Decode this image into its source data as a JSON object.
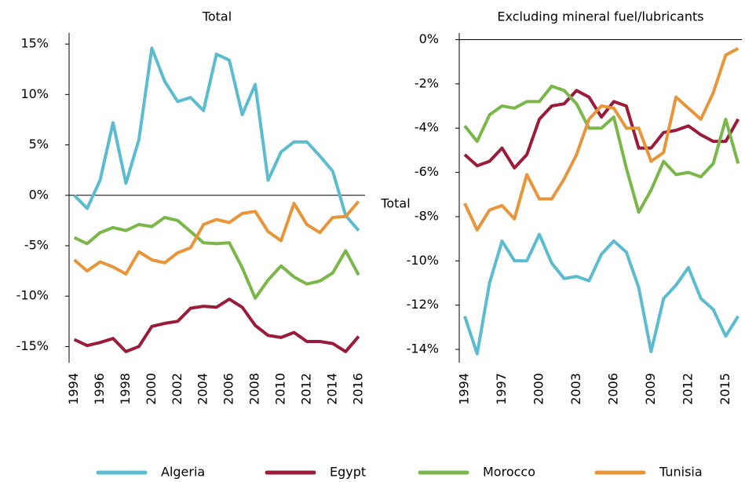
{
  "chart_data": [
    {
      "type": "line",
      "title": "Total",
      "x": [
        1994,
        1995,
        1996,
        1997,
        1998,
        1999,
        2000,
        2001,
        2002,
        2003,
        2004,
        2005,
        2006,
        2007,
        2008,
        2009,
        2010,
        2011,
        2012,
        2013,
        2014,
        2015,
        2016
      ],
      "xlim": [
        1993.6,
        2016.5
      ],
      "xticks": [
        1994,
        1996,
        1998,
        2000,
        2002,
        2004,
        2006,
        2008,
        2010,
        2012,
        2014,
        2016
      ],
      "ylim": [
        -16.6,
        16.1
      ],
      "yticks": [
        {
          "value": -15,
          "label": "-15%"
        },
        {
          "value": -10,
          "label": "-10%"
        },
        {
          "value": -5,
          "label": "-5%"
        },
        {
          "value": 0,
          "label": "0%"
        },
        {
          "value": 5,
          "label": "5%"
        },
        {
          "value": 10,
          "label": "10%"
        },
        {
          "value": 15,
          "label": "15%"
        }
      ],
      "series": [
        {
          "name": "Algeria",
          "color": "#5bbccf",
          "values": [
            0,
            -1.3,
            1.5,
            7.2,
            1.2,
            5.5,
            14.6,
            11.3,
            9.3,
            9.7,
            8.4,
            14.0,
            13.4,
            8.0,
            11.0,
            1.5,
            4.3,
            5.3,
            5.3,
            3.9,
            2.4,
            -2.0,
            -3.5
          ]
        },
        {
          "name": "Egypt",
          "color": "#9b1b3a",
          "values": [
            -14.3,
            -14.9,
            -14.6,
            -14.2,
            -15.5,
            -15.0,
            -13.0,
            -12.7,
            -12.5,
            -11.2,
            -11.0,
            -11.1,
            -10.3,
            -11.1,
            -12.9,
            -13.9,
            -14.1,
            -13.6,
            -14.5,
            -14.5,
            -14.7,
            -15.5,
            -14.0
          ]
        },
        {
          "name": "Morocco",
          "color": "#7ab648",
          "values": [
            -4.2,
            -4.8,
            -3.7,
            -3.2,
            -3.5,
            -2.9,
            -3.1,
            -2.2,
            -2.5,
            -3.6,
            -4.7,
            -4.8,
            -4.7,
            -7.2,
            -10.2,
            -8.4,
            -7.0,
            -8.1,
            -8.8,
            -8.5,
            -7.7,
            -5.5,
            -7.9
          ]
        },
        {
          "name": "Tunisia",
          "color": "#e8953a",
          "values": [
            -6.4,
            -7.5,
            -6.6,
            -7.1,
            -7.8,
            -5.6,
            -6.4,
            -6.7,
            -5.7,
            -5.2,
            -2.9,
            -2.4,
            -2.7,
            -1.8,
            -1.6,
            -3.6,
            -4.5,
            -0.8,
            -2.9,
            -3.7,
            -2.2,
            -2.1,
            -0.6
          ]
        }
      ]
    },
    {
      "type": "line",
      "title": "Excluding mineral fuel/lubricants",
      "annotation": "Total",
      "x": [
        1994,
        1995,
        1996,
        1997,
        1998,
        1999,
        2000,
        2001,
        2002,
        2003,
        2004,
        2005,
        2006,
        2007,
        2008,
        2009,
        2010,
        2011,
        2012,
        2013,
        2014,
        2015,
        2016
      ],
      "xlim": [
        1993.56,
        2016.3
      ],
      "xticks": [
        1994,
        1997,
        2000,
        2003,
        2006,
        2009,
        2012,
        2015
      ],
      "ylim": [
        -14.6,
        0.3
      ],
      "yticks": [
        {
          "value": -14,
          "label": "-14%"
        },
        {
          "value": -12,
          "label": "-12%"
        },
        {
          "value": -10,
          "label": "-10%"
        },
        {
          "value": -8,
          "label": "-8%"
        },
        {
          "value": -6,
          "label": "-6%"
        },
        {
          "value": -4,
          "label": "-4%"
        },
        {
          "value": -2,
          "label": "-2%"
        },
        {
          "value": 0,
          "label": "0%"
        }
      ],
      "series": [
        {
          "name": "Algeria",
          "color": "#5bbccf",
          "values": [
            -12.5,
            -14.2,
            -11.0,
            -9.1,
            -10.0,
            -10.0,
            -8.8,
            -10.1,
            -10.8,
            -10.7,
            -10.9,
            -9.7,
            -9.1,
            -9.6,
            -11.2,
            -14.1,
            -11.7,
            -11.1,
            -10.3,
            -11.7,
            -12.2,
            -13.4,
            -12.5
          ]
        },
        {
          "name": "Egypt",
          "color": "#9b1b3a",
          "values": [
            -5.2,
            -5.7,
            -5.5,
            -4.9,
            -5.8,
            -5.2,
            -3.6,
            -3.0,
            -2.9,
            -2.3,
            -2.6,
            -3.5,
            -2.8,
            -3.0,
            -4.9,
            -4.9,
            -4.2,
            -4.1,
            -3.9,
            -4.3,
            -4.6,
            -4.6,
            -3.6
          ]
        },
        {
          "name": "Morocco",
          "color": "#7ab648",
          "values": [
            -3.9,
            -4.6,
            -3.4,
            -3.0,
            -3.1,
            -2.8,
            -2.8,
            -2.1,
            -2.3,
            -2.9,
            -4.0,
            -4.0,
            -3.5,
            -5.8,
            -7.8,
            -6.8,
            -5.5,
            -6.1,
            -6.0,
            -6.2,
            -5.6,
            -3.6,
            -5.6
          ]
        },
        {
          "name": "Tunisia",
          "color": "#e8953a",
          "values": [
            -7.4,
            -8.6,
            -7.7,
            -7.5,
            -8.1,
            -6.1,
            -7.2,
            -7.2,
            -6.3,
            -5.2,
            -3.6,
            -3.0,
            -3.1,
            -4.0,
            -4.0,
            -5.5,
            -5.1,
            -2.6,
            -3.1,
            -3.6,
            -2.4,
            -0.7,
            -0.4
          ]
        }
      ]
    }
  ]
}
